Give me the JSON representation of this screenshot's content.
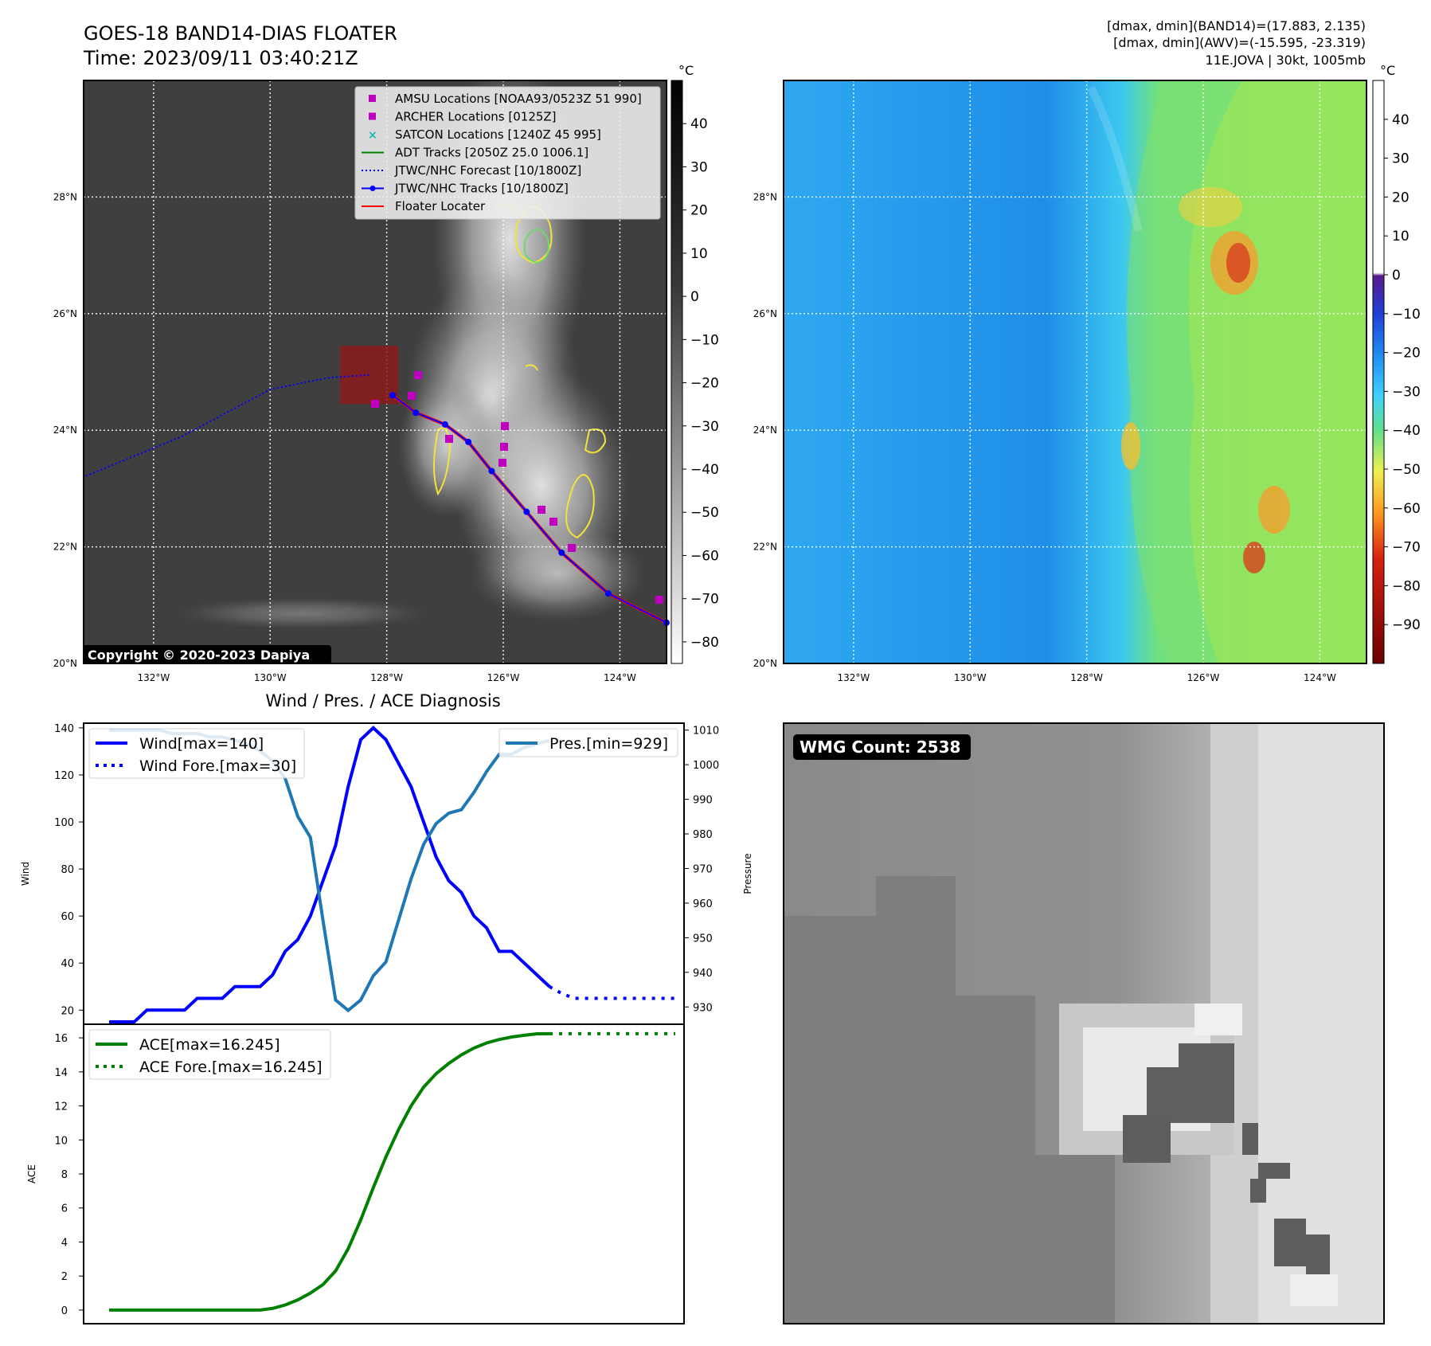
{
  "header": {
    "title": "GOES-18 BAND14-DIAS FLOATER",
    "time": "Time: 2023/09/11 03:40:21Z",
    "info_line1": "[dmax, dmin](BAND14)=(17.883, 2.135)",
    "info_line2": "[dmax, dmin](AWV)=(-15.595, -23.319)",
    "info_line3": "11E.JOVA | 30kt, 1005mb"
  },
  "map": {
    "lat_labels": [
      "28°N",
      "26°N",
      "24°N",
      "22°N",
      "20°N"
    ],
    "lon_labels": [
      "132°W",
      "130°W",
      "128°W",
      "126°W",
      "124°W"
    ],
    "copyright": "Copyright © 2020-2023 Dapiya",
    "cbar_unit": "°C",
    "cbar_ir_ticks": [
      "40",
      "30",
      "20",
      "10",
      "0",
      "−10",
      "−20",
      "−30",
      "−40",
      "−50",
      "−60",
      "−70",
      "−80"
    ],
    "cbar_wv_ticks": [
      "40",
      "30",
      "20",
      "10",
      "0",
      "−10",
      "−20",
      "−30",
      "−40",
      "−50",
      "−60",
      "−70",
      "−80",
      "−90"
    ],
    "legend": [
      {
        "label": "AMSU Locations [NOAA93/0523Z 51 990]",
        "color": "#c000c0",
        "marker": "square"
      },
      {
        "label": "ARCHER Locations [0125Z]",
        "color": "#c000c0",
        "marker": "square"
      },
      {
        "label": "SATCON Locations [1240Z 45 995]",
        "color": "#10b8b0",
        "marker": "x"
      },
      {
        "label": "ADT Tracks [2050Z 25.0 1006.1]",
        "color": "#008000",
        "marker": "line"
      },
      {
        "label": "JTWC/NHC Forecast [10/1800Z]",
        "color": "#0000ff",
        "marker": "dotted"
      },
      {
        "label": "JTWC/NHC Tracks [10/1800Z]",
        "color": "#0000ff",
        "marker": "line-dot"
      },
      {
        "label": "Floater Locater",
        "color": "#ff0000",
        "marker": "line"
      }
    ],
    "track_best": [
      [
        -123.2,
        20.7
      ],
      [
        -124.2,
        21.2
      ],
      [
        -125.0,
        21.9
      ],
      [
        -125.6,
        22.6
      ],
      [
        -126.2,
        23.3
      ],
      [
        -126.6,
        23.8
      ],
      [
        -127.0,
        24.1
      ],
      [
        -127.5,
        24.3
      ],
      [
        -127.9,
        24.6
      ]
    ],
    "track_forecast": [
      [
        -128.3,
        24.95
      ],
      [
        -129.0,
        24.9
      ],
      [
        -130.0,
        24.7
      ],
      [
        -131.5,
        23.9
      ],
      [
        -133.2,
        23.2
      ]
    ],
    "floater_box": {
      "lon_min": -128.8,
      "lon_max": -127.8,
      "lat_min": 24.45,
      "lat_max": 25.45
    }
  },
  "chart_data": [
    {
      "type": "line",
      "title": "Wind / Pres. / ACE Diagnosis",
      "ylabel": "Wind",
      "y2label": "Pressure",
      "ylim": [
        14,
        142
      ],
      "y2lim": [
        925,
        1012
      ],
      "yticks": [
        "140",
        "120",
        "100",
        "80",
        "60",
        "40",
        "20"
      ],
      "y2ticks": [
        "1010",
        "1000",
        "990",
        "980",
        "970",
        "960",
        "950",
        "940",
        "930"
      ],
      "series": [
        {
          "name": "Wind[max=140]",
          "color": "#0000ff",
          "style": "solid",
          "values": [
            15,
            15,
            15,
            20,
            20,
            20,
            20,
            25,
            25,
            25,
            30,
            30,
            30,
            35,
            45,
            50,
            60,
            75,
            90,
            115,
            135,
            140,
            135,
            125,
            115,
            100,
            85,
            75,
            70,
            60,
            55,
            45,
            45,
            40,
            35,
            30
          ]
        },
        {
          "name": "Wind Fore.[max=30]",
          "color": "#0000ff",
          "style": "dotted",
          "values": [
            30,
            27,
            25,
            25,
            25,
            25,
            25,
            25,
            25,
            25,
            25
          ]
        },
        {
          "name": "Pres.[min=929]",
          "color": "#1f77b4",
          "style": "solid",
          "axis": "right",
          "values": [
            1010,
            1010,
            1010,
            1010,
            1010,
            1009,
            1009,
            1009,
            1008,
            1008,
            1007,
            1006,
            1004,
            1001,
            996,
            985,
            979,
            955,
            932,
            929,
            932,
            939,
            943,
            955,
            967,
            977,
            983,
            986,
            987,
            992,
            998,
            1003,
            1003,
            1005,
            1006,
            1007
          ]
        }
      ]
    },
    {
      "type": "line",
      "ylabel": "ACE",
      "ylim": [
        -0.8,
        16.8
      ],
      "yticks": [
        "16",
        "14",
        "12",
        "10",
        "8",
        "6",
        "4",
        "2",
        "0"
      ],
      "series": [
        {
          "name": "ACE[max=16.245]",
          "color": "#008000",
          "style": "solid",
          "values": [
            0,
            0,
            0,
            0,
            0,
            0,
            0,
            0,
            0,
            0,
            0,
            0,
            0,
            0.1,
            0.3,
            0.6,
            1.0,
            1.5,
            2.3,
            3.6,
            5.3,
            7.2,
            9.0,
            10.6,
            12.0,
            13.1,
            13.9,
            14.5,
            15.0,
            15.4,
            15.7,
            15.9,
            16.05,
            16.15,
            16.24,
            16.245
          ]
        },
        {
          "name": "ACE Fore.[max=16.245]",
          "color": "#008000",
          "style": "dotted",
          "values": [
            16.245,
            16.245,
            16.245,
            16.245,
            16.245,
            16.245,
            16.245,
            16.245,
            16.245,
            16.245,
            16.245
          ]
        }
      ]
    }
  ],
  "wmg": {
    "label": "WMG Count: 2538"
  }
}
